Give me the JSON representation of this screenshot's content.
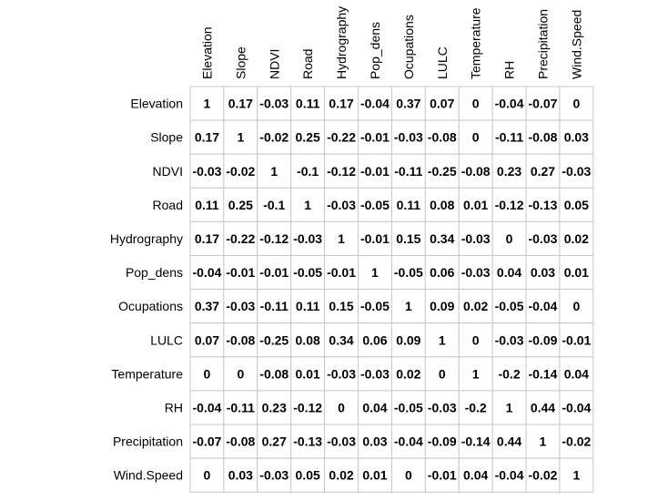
{
  "chart_data": {
    "type": "table",
    "variables": [
      "Elevation",
      "Slope",
      "NDVI",
      "Road",
      "Hydrography",
      "Pop_dens",
      "Ocupations",
      "LULC",
      "Temperature",
      "RH",
      "Precipitation",
      "Wind.Speed"
    ],
    "row_labels": [
      "Elevation",
      "Slope",
      "NDVI",
      "Road",
      "Hydrography",
      "Pop_dens",
      "Ocupations",
      "LULC",
      "Temperature",
      "RH",
      "Precipitation",
      "Wind.Speed"
    ],
    "col_labels": [
      "Elevation",
      "Slope",
      "NDVI",
      "Road",
      "Hydrography",
      "Pop_dens",
      "Ocupations",
      "LULC",
      "Temperature",
      "RH",
      "Precipitation",
      "Wind.Speed"
    ],
    "matrix": [
      [
        1,
        0.17,
        -0.03,
        0.11,
        0.17,
        -0.04,
        0.37,
        0.07,
        0,
        -0.04,
        -0.07,
        0
      ],
      [
        0.17,
        1,
        -0.02,
        0.25,
        -0.22,
        -0.01,
        -0.03,
        -0.08,
        0,
        -0.11,
        -0.08,
        0.03
      ],
      [
        -0.03,
        -0.02,
        1,
        -0.1,
        -0.12,
        -0.01,
        -0.11,
        -0.25,
        -0.08,
        0.23,
        0.27,
        -0.03
      ],
      [
        0.11,
        0.25,
        -0.1,
        1,
        -0.03,
        -0.05,
        0.11,
        0.08,
        0.01,
        -0.12,
        -0.13,
        0.05
      ],
      [
        0.17,
        -0.22,
        -0.12,
        -0.03,
        1,
        -0.01,
        0.15,
        0.34,
        -0.03,
        0,
        -0.03,
        0.02
      ],
      [
        -0.04,
        -0.01,
        -0.01,
        -0.05,
        -0.01,
        1,
        -0.05,
        0.06,
        -0.03,
        0.04,
        0.03,
        0.01
      ],
      [
        0.37,
        -0.03,
        -0.11,
        0.11,
        0.15,
        -0.05,
        1,
        0.09,
        0.02,
        -0.05,
        -0.04,
        0
      ],
      [
        0.07,
        -0.08,
        -0.25,
        0.08,
        0.34,
        0.06,
        0.09,
        1,
        0,
        -0.03,
        -0.09,
        -0.01
      ],
      [
        0,
        0,
        -0.08,
        0.01,
        -0.03,
        -0.03,
        0.02,
        0,
        1,
        -0.2,
        -0.14,
        0.04
      ],
      [
        -0.04,
        -0.11,
        0.23,
        -0.12,
        0,
        0.04,
        -0.05,
        -0.03,
        -0.2,
        1,
        0.44,
        -0.04
      ],
      [
        -0.07,
        -0.08,
        0.27,
        -0.13,
        -0.03,
        0.03,
        -0.04,
        -0.09,
        -0.14,
        0.44,
        1,
        -0.02
      ],
      [
        0,
        0.03,
        -0.03,
        0.05,
        0.02,
        0.01,
        0,
        -0.01,
        0.04,
        -0.04,
        -0.02,
        1
      ]
    ],
    "title": "",
    "grid": true,
    "colors": {
      "grid": "#c8c8c8",
      "text": "#000000",
      "background": "#ffffff"
    }
  }
}
